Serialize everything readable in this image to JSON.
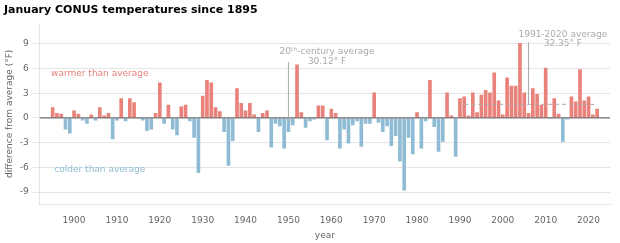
{
  "chart_data": {
    "type": "bar",
    "title": "January CONUS temperatures since 1895",
    "xlabel": "year",
    "ylabel": "difference from average (°F)",
    "x": [
      1895,
      1896,
      1897,
      1898,
      1899,
      1900,
      1901,
      1902,
      1903,
      1904,
      1905,
      1906,
      1907,
      1908,
      1909,
      1910,
      1911,
      1912,
      1913,
      1914,
      1915,
      1916,
      1917,
      1918,
      1919,
      1920,
      1921,
      1922,
      1923,
      1924,
      1925,
      1926,
      1927,
      1928,
      1929,
      1930,
      1931,
      1932,
      1933,
      1934,
      1935,
      1936,
      1937,
      1938,
      1939,
      1940,
      1941,
      1942,
      1943,
      1944,
      1945,
      1946,
      1947,
      1948,
      1949,
      1950,
      1951,
      1952,
      1953,
      1954,
      1955,
      1956,
      1957,
      1958,
      1959,
      1960,
      1961,
      1962,
      1963,
      1964,
      1965,
      1966,
      1967,
      1968,
      1969,
      1970,
      1971,
      1972,
      1973,
      1974,
      1975,
      1976,
      1977,
      1978,
      1979,
      1980,
      1981,
      1982,
      1983,
      1984,
      1985,
      1986,
      1987,
      1988,
      1989,
      1990,
      1991,
      1992,
      1993,
      1994,
      1995,
      1996,
      1997,
      1998,
      1999,
      2000,
      2001,
      2002,
      2003,
      2004,
      2005,
      2006,
      2007,
      2008,
      2009,
      2010,
      2011,
      2012,
      2013,
      2014,
      2015,
      2016,
      2017,
      2018,
      2019,
      2020,
      2021,
      2022
    ],
    "values": [
      1.3,
      0.6,
      0.5,
      -1.4,
      -1.9,
      0.9,
      0.5,
      -0.3,
      -0.7,
      0.4,
      -0.3,
      1.3,
      0.3,
      0.6,
      -2.6,
      -0.3,
      2.4,
      -0.4,
      2.4,
      1.9,
      -0.1,
      -0.3,
      -1.6,
      -1.4,
      0.6,
      4.3,
      -0.7,
      1.6,
      -1.4,
      -2.1,
      1.4,
      1.6,
      -0.4,
      -2.4,
      -6.7,
      2.7,
      4.6,
      4.3,
      1.3,
      0.8,
      -1.7,
      -5.8,
      -2.8,
      3.6,
      1.8,
      0.9,
      1.8,
      0.4,
      -1.7,
      0.6,
      0.9,
      -3.6,
      -0.7,
      -1.0,
      -3.7,
      -1.7,
      -0.9,
      6.5,
      0.7,
      -1.2,
      -0.4,
      -0.2,
      1.5,
      1.5,
      -2.7,
      1.1,
      0.6,
      -3.7,
      -1.4,
      -3.1,
      -0.9,
      -0.4,
      -3.5,
      -0.7,
      -0.7,
      3.1,
      -0.6,
      -1.7,
      -1.0,
      -3.4,
      -2.2,
      -5.3,
      -8.8,
      -2.4,
      -4.4,
      0.7,
      -3.7,
      -0.4,
      4.6,
      -1.1,
      -4.1,
      -2.9,
      3.1,
      0.3,
      -4.7,
      2.4,
      2.6,
      0.3,
      3.1,
      0.7,
      2.8,
      3.4,
      3.1,
      5.5,
      2.1,
      0.4,
      4.9,
      3.9,
      3.9,
      9.1,
      3.1,
      0.6,
      3.6,
      2.9,
      1.6,
      6.1,
      -0.1,
      2.4,
      0.5,
      -2.9,
      -0.2,
      2.6,
      2.0,
      5.9,
      2.1,
      2.6,
      0.4,
      1.1
    ],
    "colors": [
      "#e8827a",
      "#e8827a",
      "#e8827a",
      "#8fbcd4",
      "#8fbcd4",
      "#e8827a",
      "#e8827a",
      "#8fbcd4",
      "#8fbcd4",
      "#e8827a",
      "#8fbcd4",
      "#e8827a",
      "#e8827a",
      "#e8827a",
      "#8fbcd4",
      "#8fbcd4",
      "#e8827a",
      "#8fbcd4",
      "#e8827a",
      "#e8827a",
      "#8fbcd4",
      "#8fbcd4",
      "#8fbcd4",
      "#8fbcd4",
      "#e8827a",
      "#e8827a",
      "#8fbcd4",
      "#e8827a",
      "#8fbcd4",
      "#8fbcd4",
      "#e8827a",
      "#e8827a",
      "#8fbcd4",
      "#8fbcd4",
      "#8fbcd4",
      "#e8827a",
      "#e8827a",
      "#e8827a",
      "#e8827a",
      "#e8827a",
      "#8fbcd4",
      "#8fbcd4",
      "#8fbcd4",
      "#e8827a",
      "#e8827a",
      "#e8827a",
      "#e8827a",
      "#e8827a",
      "#8fbcd4",
      "#e8827a",
      "#e8827a",
      "#8fbcd4",
      "#8fbcd4",
      "#8fbcd4",
      "#8fbcd4",
      "#8fbcd4",
      "#8fbcd4",
      "#e8827a",
      "#e8827a",
      "#8fbcd4",
      "#8fbcd4",
      "#8fbcd4",
      "#e8827a",
      "#e8827a",
      "#8fbcd4",
      "#e8827a",
      "#e8827a",
      "#8fbcd4",
      "#8fbcd4",
      "#8fbcd4",
      "#8fbcd4",
      "#8fbcd4",
      "#8fbcd4",
      "#8fbcd4",
      "#8fbcd4",
      "#e8827a",
      "#8fbcd4",
      "#8fbcd4",
      "#8fbcd4",
      "#8fbcd4",
      "#8fbcd4",
      "#8fbcd4",
      "#8fbcd4",
      "#8fbcd4",
      "#8fbcd4",
      "#e8827a",
      "#8fbcd4",
      "#8fbcd4",
      "#e8827a",
      "#8fbcd4",
      "#8fbcd4",
      "#8fbcd4",
      "#e8827a",
      "#e8827a",
      "#8fbcd4",
      "#e8827a",
      "#e8827a",
      "#e8827a",
      "#e8827a",
      "#e8827a",
      "#e8827a",
      "#e8827a",
      "#e8827a",
      "#e8827a",
      "#e8827a",
      "#e8827a",
      "#e8827a",
      "#e8827a",
      "#e8827a",
      "#e8827a",
      "#e8827a",
      "#e8827a",
      "#e8827a",
      "#e8827a",
      "#e8827a",
      "#e8827a",
      "#8fbcd4",
      "#e8827a",
      "#e8827a",
      "#8fbcd4",
      "#8fbcd4",
      "#e8827a",
      "#e8827a",
      "#e8827a",
      "#e8827a",
      "#e8827a",
      "#e8827a",
      "#e8827a"
    ],
    "xlim": [
      1892,
      2025
    ],
    "xticks": [
      1900,
      1910,
      1920,
      1930,
      1940,
      1950,
      1960,
      1970,
      1980,
      1990,
      2000,
      2010,
      2020
    ],
    "ylim": [
      -10.5,
      11.5
    ],
    "yticks": [
      -9,
      -6,
      -3,
      0,
      3,
      6,
      9
    ],
    "grid": true,
    "lines": [
      {
        "y": 0,
        "color": "#555555"
      },
      {
        "x": [
          1991,
          2022
        ],
        "y": [
          1.65,
          1.65
        ],
        "color": "#aaaaaa",
        "line_style": "dashed"
      },
      {
        "x": [
          1950,
          1950
        ],
        "y": [
          0,
          6.8
        ],
        "color": "#aaaaaa"
      },
      {
        "x": [
          2006,
          2006
        ],
        "y": [
          1.65,
          9.2
        ],
        "color": "#aaaaaa"
      }
    ],
    "annotations": [
      {
        "text": "20ᵗʰ-century average",
        "x": 1959,
        "y": 7.5,
        "color": "#aaaaaa"
      },
      {
        "text": "30.12° F",
        "x": 1959,
        "y": 6.3,
        "color": "#aaaaaa"
      },
      {
        "text": "1991-2020 average",
        "x": 2014,
        "y": 9.6,
        "color": "#aaaaaa"
      },
      {
        "text": "32.35° F",
        "x": 2014,
        "y": 8.5,
        "color": "#aaaaaa"
      },
      {
        "text": "warmer than average",
        "x": 1906,
        "y": 4.8,
        "color": "#e8827a"
      },
      {
        "text": "colder than average",
        "x": 1906,
        "y": -6.8,
        "color": "#8fbcd4"
      }
    ]
  }
}
